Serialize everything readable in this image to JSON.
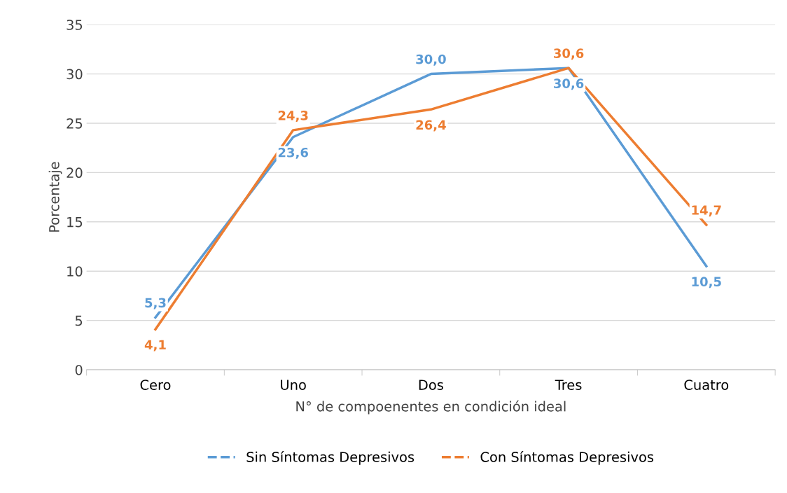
{
  "chart_data": {
    "type": "line",
    "xlabel": "N° de compoenentes en condición ideal",
    "ylabel": "Porcentaje",
    "categories": [
      "Cero",
      "Uno",
      "Dos",
      "Tres",
      "Cuatro"
    ],
    "series": [
      {
        "name": "Sin Síntomas Depresivos",
        "color": "#5b9bd5",
        "values": [
          5.3,
          23.6,
          30.0,
          30.6,
          10.5
        ],
        "value_labels": [
          "5,3",
          "23,6",
          "30,0",
          "30,6",
          "10,5"
        ]
      },
      {
        "name": "Con Síntomas Depresivos",
        "color": "#ed7d31",
        "values": [
          4.1,
          24.3,
          26.4,
          30.6,
          14.7
        ],
        "value_labels": [
          "4,1",
          "24,3",
          "26,4",
          "30,6",
          "14,7"
        ]
      }
    ],
    "ylim": [
      0,
      35
    ],
    "yticks": [
      0,
      5,
      10,
      15,
      20,
      25,
      30,
      35
    ],
    "grid": "y",
    "legend": "bottom",
    "marker": "none",
    "line_style": "solid"
  }
}
